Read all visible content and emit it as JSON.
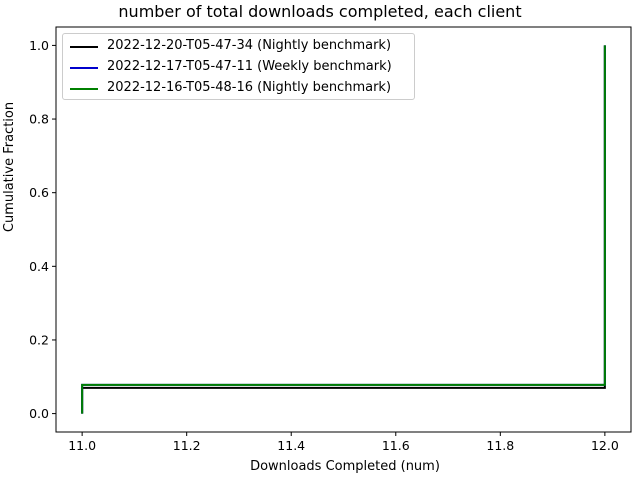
{
  "chart_data": {
    "type": "line",
    "title": "number of total downloads completed, each client",
    "xlabel": "Downloads Completed (num)",
    "ylabel": "Cumulative Fraction",
    "xlim": [
      10.95,
      12.05
    ],
    "ylim": [
      -0.05,
      1.05
    ],
    "x_ticks": [
      "11.0",
      "11.2",
      "11.4",
      "11.6",
      "11.8",
      "12.0"
    ],
    "y_ticks": [
      "0.0",
      "0.2",
      "0.4",
      "0.6",
      "0.8",
      "1.0"
    ],
    "grid": false,
    "legend_position": "top-left",
    "series": [
      {
        "name": "2022-12-20-T05-47-34 (Nightly benchmark)",
        "color": "#000000",
        "step": "post",
        "x": [
          11.0,
          11.0,
          12.0,
          12.0
        ],
        "y": [
          0.0,
          0.07,
          0.07,
          1.0
        ]
      },
      {
        "name": "2022-12-17-T05-47-11 (Weekly benchmark)",
        "color": "#0000cc",
        "step": "post",
        "x": [
          11.0,
          11.0,
          12.0,
          12.0
        ],
        "y": [
          0.0,
          0.078,
          0.078,
          1.0
        ]
      },
      {
        "name": "2022-12-16-T05-48-16 (Nightly benchmark)",
        "color": "#008000",
        "step": "post",
        "x": [
          11.0,
          11.0,
          12.0,
          12.0
        ],
        "y": [
          0.0,
          0.078,
          0.078,
          1.0
        ]
      }
    ]
  }
}
